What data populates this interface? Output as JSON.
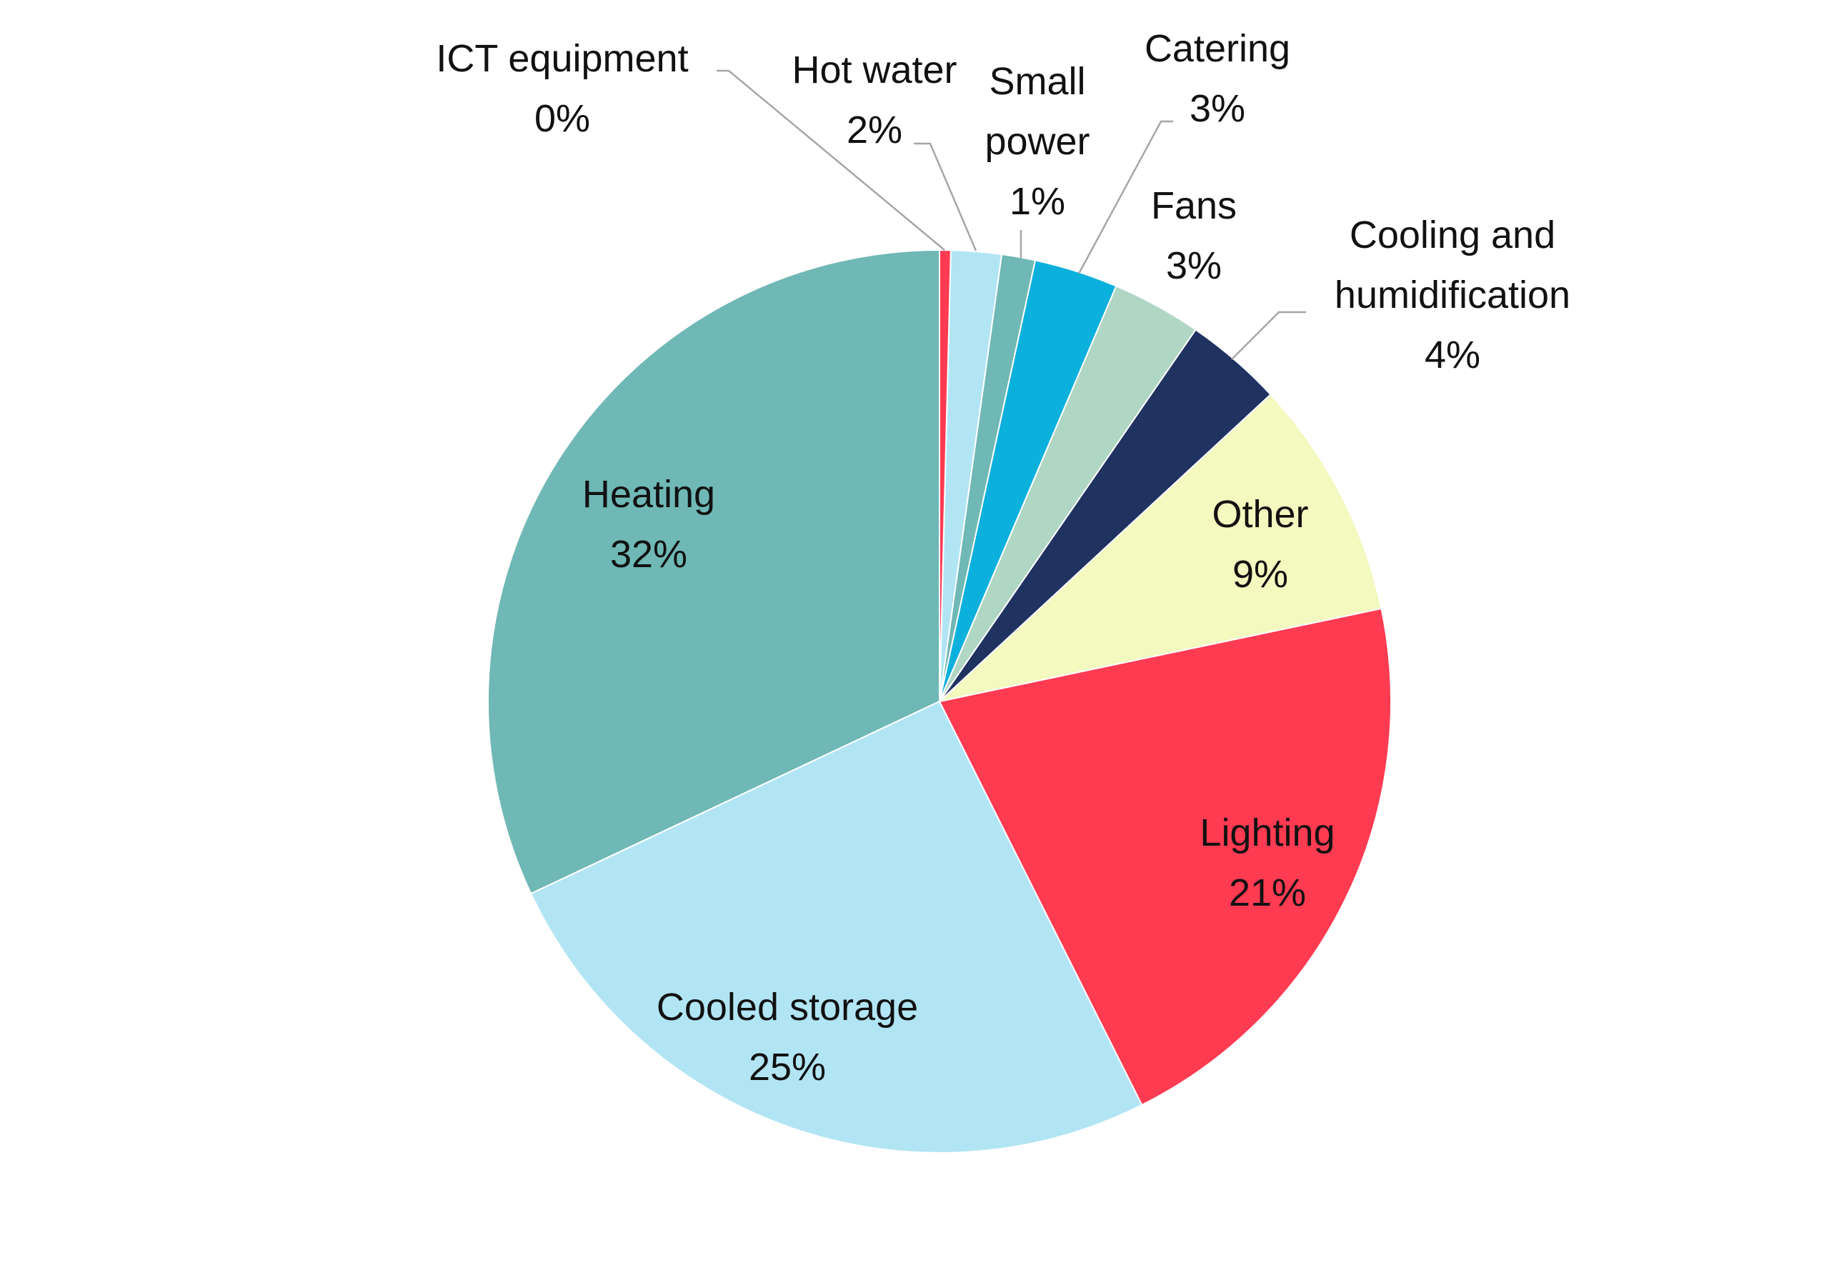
{
  "chart_data": {
    "type": "pie",
    "categories": [
      "ICT equipment",
      "Hot water",
      "Small power",
      "Catering",
      "Fans",
      "Cooling and humidification",
      "Other",
      "Lighting",
      "Cooled storage",
      "Heating"
    ],
    "values": [
      0.4,
      1.8,
      1.2,
      3.0,
      3.2,
      3.5,
      8.6,
      20.9,
      25.4,
      32
    ],
    "value_labels": [
      "0%",
      "2%",
      "1%",
      "3%",
      "3%",
      "4%",
      "9%",
      "21%",
      "25%",
      "32%"
    ],
    "colors": [
      "#ff3b52",
      "#b2e5f4",
      "#6fb8b6",
      "#0cb0dc",
      "#b0d6c4",
      "#1f3260",
      "#f3f9bf",
      "#ff3b52",
      "#b2e5f4",
      "#6fb8b6"
    ]
  }
}
